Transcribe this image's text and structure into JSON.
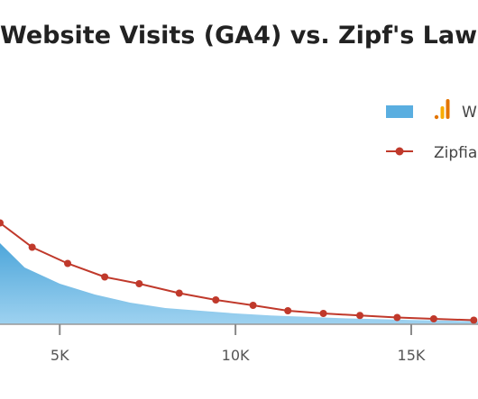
{
  "chart_data": {
    "type": "area",
    "title": "Website Visits (GA4) vs. Zipf's Law",
    "x_tick_labels": [
      "5K",
      "10K",
      "15K"
    ],
    "x_ticks": [
      5000,
      10000,
      15000
    ],
    "xlim": [
      3300,
      16900
    ],
    "ylim": [
      0,
      1
    ],
    "grid": false,
    "legend_placement": "top-right",
    "series": [
      {
        "name": "W",
        "type": "area",
        "color": "#5aaee0",
        "icon": "google-analytics-icon",
        "x": [
          3300,
          4000,
          5000,
          6000,
          7000,
          8000,
          9000,
          10000,
          11000,
          12000,
          13000,
          14000,
          15000,
          16000,
          16900
        ],
        "values": [
          0.6,
          0.42,
          0.3,
          0.22,
          0.16,
          0.12,
          0.1,
          0.08,
          0.065,
          0.055,
          0.045,
          0.038,
          0.032,
          0.027,
          0.022
        ]
      },
      {
        "name": "Zipfia",
        "type": "line",
        "color": "#c0392b",
        "marker": "circle",
        "x": [
          3300,
          4215,
          5225,
          6280,
          7260,
          8400,
          9440,
          10500,
          11490,
          12500,
          13540,
          14600,
          15640,
          16780
        ],
        "values": [
          0.75,
          0.57,
          0.45,
          0.35,
          0.3,
          0.23,
          0.18,
          0.14,
          0.1,
          0.08,
          0.065,
          0.05,
          0.04,
          0.03
        ]
      }
    ]
  }
}
